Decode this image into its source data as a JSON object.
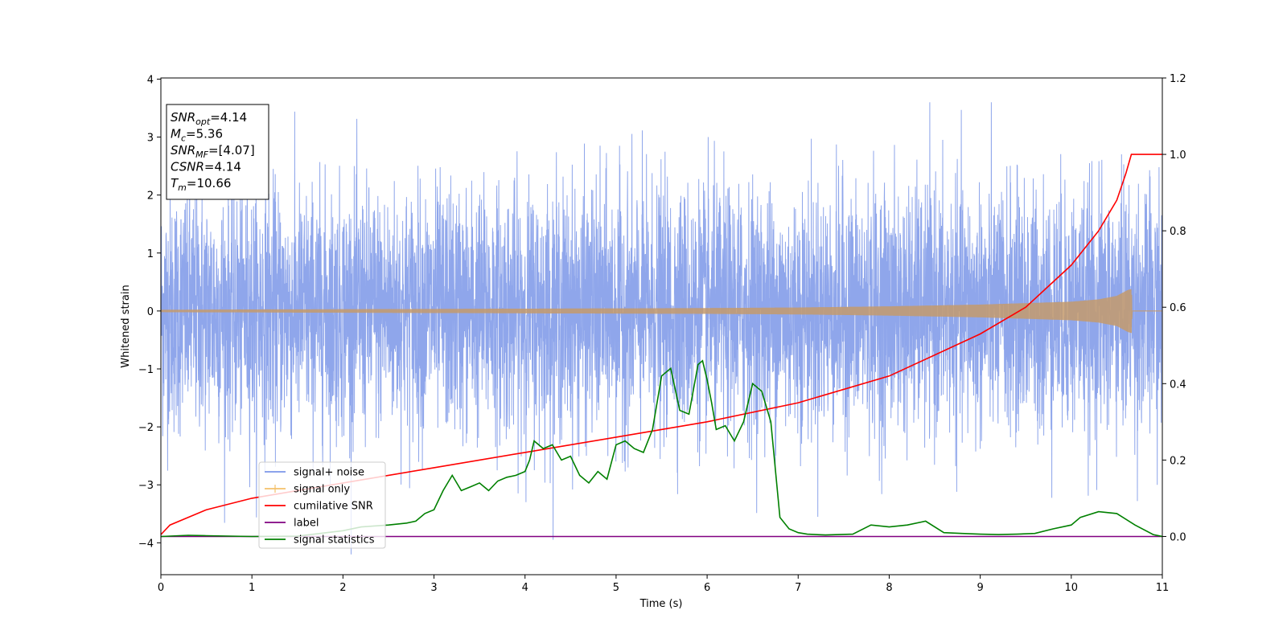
{
  "chart_data": {
    "type": "line",
    "title": "",
    "xlabel": "Time (s)",
    "ylabel": "Whitened strain",
    "xlim": [
      0,
      11
    ],
    "ylim": [
      -4.55,
      4.02
    ],
    "y2lim": [
      -0.1,
      1.2
    ],
    "x_ticks": [
      0,
      1,
      2,
      3,
      4,
      5,
      6,
      7,
      8,
      9,
      10,
      11
    ],
    "y_ticks": [
      -4,
      -3,
      -2,
      -1,
      0,
      1,
      2,
      3,
      4
    ],
    "y2_ticks": [
      0.0,
      0.2,
      0.4,
      0.6,
      0.8,
      1.0,
      1.2
    ],
    "y_tick_labels": [
      "−4",
      "−3",
      "−2",
      "−1",
      "0",
      "1",
      "2",
      "3",
      "4"
    ],
    "y2_tick_labels": [
      "0.0",
      "0.2",
      "0.4",
      "0.6",
      "0.8",
      "1.0",
      "1.2"
    ],
    "x_tick_labels": [
      "0",
      "1",
      "2",
      "3",
      "4",
      "5",
      "6",
      "7",
      "8",
      "9",
      "10",
      "11"
    ],
    "grid": false,
    "legend_position": "lower-left",
    "info_box": {
      "lines": [
        {
          "sym": "SNR",
          "sub": "opt",
          "value": "=4.14"
        },
        {
          "sym": "M",
          "sub": "c",
          "value": "=5.36"
        },
        {
          "sym": "SNR",
          "sub": "MF",
          "value": "=[4.07]"
        },
        {
          "sym": "CSNR",
          "sub": "",
          "value": "=4.14"
        },
        {
          "sym": "T",
          "sub": "m",
          "value": "=10.66"
        }
      ]
    },
    "series": [
      {
        "name": "signal+ noise",
        "color": "#7b96e8",
        "axis": "left",
        "kind": "noise",
        "amplitude_sd": 1.0,
        "x_range": [
          0,
          11
        ]
      },
      {
        "name": "signal only",
        "color": "#f4c06a",
        "axis": "left",
        "kind": "chirp",
        "envelope": {
          "x": [
            0,
            2,
            4,
            6,
            7,
            8,
            9,
            10,
            10.3,
            10.5,
            10.62,
            10.66,
            10.67,
            11
          ],
          "y": [
            0.02,
            0.03,
            0.04,
            0.05,
            0.06,
            0.08,
            0.11,
            0.16,
            0.2,
            0.26,
            0.36,
            0.38,
            0.0,
            0.0
          ]
        }
      },
      {
        "name": "cumilative SNR",
        "color": "#ff0000",
        "axis": "right",
        "x": [
          0,
          0.1,
          0.5,
          1,
          2,
          3,
          4,
          5,
          6,
          7,
          8,
          9,
          9.5,
          10,
          10.3,
          10.5,
          10.6,
          10.66,
          11
        ],
        "y": [
          0.005,
          0.03,
          0.07,
          0.1,
          0.14,
          0.18,
          0.22,
          0.26,
          0.3,
          0.35,
          0.42,
          0.53,
          0.6,
          0.71,
          0.8,
          0.88,
          0.95,
          1.0,
          1.0
        ]
      },
      {
        "name": "label",
        "color": "#800080",
        "axis": "right",
        "x": [
          0,
          11
        ],
        "y": [
          0,
          0
        ]
      },
      {
        "name": "signal statistics",
        "color": "#008000",
        "axis": "right",
        "x": [
          0,
          0.3,
          0.5,
          1,
          1.5,
          2,
          2.2,
          2.5,
          2.7,
          2.8,
          2.9,
          3.0,
          3.1,
          3.2,
          3.3,
          3.4,
          3.5,
          3.6,
          3.7,
          3.8,
          3.9,
          4.0,
          4.05,
          4.1,
          4.2,
          4.3,
          4.4,
          4.5,
          4.6,
          4.7,
          4.8,
          4.9,
          5.0,
          5.1,
          5.2,
          5.3,
          5.4,
          5.5,
          5.6,
          5.7,
          5.8,
          5.9,
          5.95,
          6.0,
          6.05,
          6.1,
          6.2,
          6.3,
          6.4,
          6.5,
          6.6,
          6.7,
          6.8,
          6.9,
          7.0,
          7.1,
          7.3,
          7.6,
          7.8,
          8.0,
          8.2,
          8.4,
          8.6,
          8.8,
          9.0,
          9.2,
          9.4,
          9.6,
          9.8,
          10.0,
          10.1,
          10.3,
          10.5,
          10.7,
          10.9,
          11.0
        ],
        "y": [
          0.0,
          0.003,
          0.002,
          0.0,
          0.001,
          0.015,
          0.025,
          0.03,
          0.035,
          0.04,
          0.06,
          0.07,
          0.12,
          0.16,
          0.12,
          0.13,
          0.14,
          0.12,
          0.145,
          0.155,
          0.16,
          0.17,
          0.2,
          0.25,
          0.23,
          0.24,
          0.2,
          0.21,
          0.16,
          0.14,
          0.17,
          0.15,
          0.24,
          0.25,
          0.23,
          0.22,
          0.28,
          0.42,
          0.44,
          0.33,
          0.32,
          0.45,
          0.46,
          0.41,
          0.35,
          0.28,
          0.29,
          0.25,
          0.3,
          0.4,
          0.38,
          0.3,
          0.05,
          0.02,
          0.01,
          0.006,
          0.004,
          0.006,
          0.03,
          0.025,
          0.03,
          0.04,
          0.01,
          0.008,
          0.006,
          0.005,
          0.006,
          0.008,
          0.02,
          0.03,
          0.05,
          0.065,
          0.06,
          0.03,
          0.005,
          0.0
        ]
      }
    ]
  }
}
